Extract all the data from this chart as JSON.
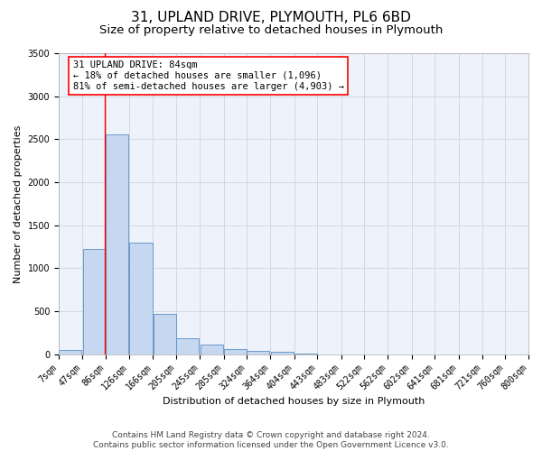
{
  "title": "31, UPLAND DRIVE, PLYMOUTH, PL6 6BD",
  "subtitle": "Size of property relative to detached houses in Plymouth",
  "xlabel": "Distribution of detached houses by size in Plymouth",
  "ylabel": "Number of detached properties",
  "footer_line1": "Contains HM Land Registry data © Crown copyright and database right 2024.",
  "footer_line2": "Contains public sector information licensed under the Open Government Licence v3.0.",
  "annotation_title": "31 UPLAND DRIVE: 84sqm",
  "annotation_line1": "← 18% of detached houses are smaller (1,096)",
  "annotation_line2": "81% of semi-detached houses are larger (4,903) →",
  "property_size_sqm": 84,
  "bar_left_edges": [
    7,
    47,
    86,
    126,
    166,
    205,
    245,
    285,
    324,
    364,
    404,
    443,
    483,
    522,
    562,
    602,
    641,
    681,
    721,
    760
  ],
  "bar_values": [
    50,
    1220,
    2560,
    1300,
    470,
    190,
    115,
    55,
    35,
    30,
    5,
    0,
    0,
    0,
    0,
    0,
    0,
    0,
    0,
    0
  ],
  "bin_width": 39,
  "bar_color": "#c5d8f0",
  "bar_edge_color": "#5a8fc2",
  "redline_x": 84,
  "ylim": [
    0,
    3500
  ],
  "yticks": [
    0,
    500,
    1000,
    1500,
    2000,
    2500,
    3000,
    3500
  ],
  "xtick_labels": [
    "7sqm",
    "47sqm",
    "86sqm",
    "126sqm",
    "166sqm",
    "205sqm",
    "245sqm",
    "285sqm",
    "324sqm",
    "364sqm",
    "404sqm",
    "443sqm",
    "483sqm",
    "522sqm",
    "562sqm",
    "602sqm",
    "641sqm",
    "681sqm",
    "721sqm",
    "760sqm",
    "800sqm"
  ],
  "grid_color": "#d0d8e8",
  "background_color": "#eef2fa",
  "annotation_box_color": "white",
  "annotation_box_edge_color": "red",
  "title_fontsize": 11,
  "subtitle_fontsize": 9.5,
  "axis_label_fontsize": 8,
  "tick_fontsize": 7,
  "annotation_fontsize": 7.5,
  "footer_fontsize": 6.5
}
